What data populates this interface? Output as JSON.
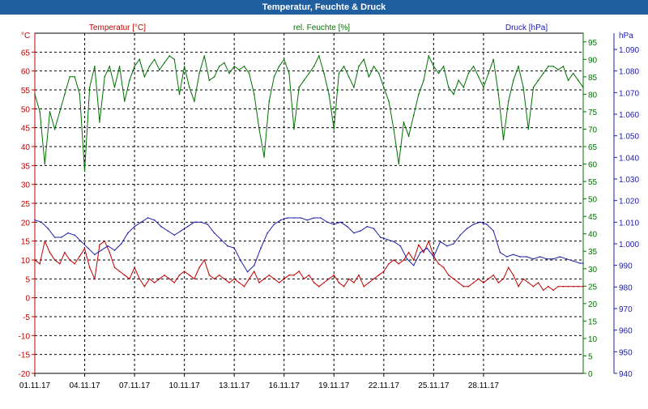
{
  "window": {
    "title": "Temperatur, Feuchte & Druck"
  },
  "colors": {
    "titlebar": "#1f5fa0",
    "temp": "#c00000",
    "hum": "#007000",
    "press": "#1c1caa",
    "grid": "#000000"
  },
  "chart_data": {
    "type": "line",
    "title": "Temperatur, Feuchte & Druck",
    "grid": true,
    "x_ticks": [
      "01.11.17",
      "04.11.17",
      "07.11.17",
      "10.11.17",
      "13.11.17",
      "16.11.17",
      "19.11.17",
      "22.11.17",
      "25.11.17",
      "28.11.17"
    ],
    "x_tick_days": [
      0,
      3,
      6,
      9,
      12,
      15,
      18,
      21,
      24,
      27
    ],
    "xlim_days": [
      0,
      33
    ],
    "axes": [
      {
        "id": "temp",
        "side": "left",
        "unit": "°C",
        "ylim": [
          -20,
          70
        ],
        "ticks": [
          -20,
          -15,
          -10,
          -5,
          0,
          5,
          10,
          15,
          20,
          25,
          30,
          35,
          40,
          45,
          50,
          55,
          60,
          65
        ],
        "color": "#c00000"
      },
      {
        "id": "hum",
        "side": "right",
        "unit": "%",
        "ylim": [
          0,
          97.5
        ],
        "ticks": [
          0,
          5,
          10,
          15,
          20,
          25,
          30,
          35,
          40,
          45,
          50,
          55,
          60,
          65,
          70,
          75,
          80,
          85,
          90,
          95
        ],
        "color": "#007000"
      },
      {
        "id": "press",
        "side": "right",
        "unit": "hPa",
        "ylim": [
          940,
          1097.5
        ],
        "ticks": [
          940,
          950,
          960,
          970,
          980,
          990,
          1000,
          1010,
          1020,
          1030,
          1040,
          1050,
          1060,
          1070,
          1080,
          1090
        ],
        "tick_labels": [
          "940",
          "950",
          "960",
          "970",
          "980",
          "990",
          "1.000",
          "1.010",
          "1.020",
          "1.030",
          "1.040",
          "1.050",
          "1.060",
          "1.070",
          "1.080",
          "1.090"
        ],
        "color": "#1c1caa"
      }
    ],
    "series": [
      {
        "name": "Temperatur [°C]",
        "axis": "temp",
        "color": "#c00000",
        "x": [
          0,
          0.3,
          0.6,
          0.9,
          1.2,
          1.5,
          1.8,
          2.1,
          2.4,
          2.7,
          3.0,
          3.3,
          3.6,
          3.9,
          4.2,
          4.5,
          4.8,
          5.1,
          5.4,
          5.7,
          6.0,
          6.3,
          6.6,
          6.9,
          7.2,
          7.5,
          7.8,
          8.1,
          8.4,
          8.7,
          9.0,
          9.3,
          9.6,
          9.9,
          10.2,
          10.5,
          10.8,
          11.1,
          11.4,
          11.7,
          12.0,
          12.3,
          12.6,
          12.9,
          13.2,
          13.5,
          13.8,
          14.1,
          14.4,
          14.7,
          15.0,
          15.3,
          15.6,
          15.9,
          16.2,
          16.5,
          16.8,
          17.1,
          17.4,
          17.7,
          18.0,
          18.3,
          18.6,
          18.9,
          19.2,
          19.5,
          19.8,
          20.1,
          20.4,
          20.7,
          21.0,
          21.3,
          21.6,
          21.9,
          22.2,
          22.5,
          22.8,
          23.1,
          23.4,
          23.7,
          24.0,
          24.3,
          24.6,
          24.9,
          25.2,
          25.5,
          25.8,
          26.1,
          26.4,
          26.7,
          27.0,
          27.3,
          27.6,
          27.9,
          28.2,
          28.5,
          28.8,
          29.1,
          29.4,
          29.7,
          30.0,
          30.3,
          30.6,
          30.9,
          31.2,
          31.5,
          31.8,
          32.1,
          32.4,
          32.7,
          33.0
        ],
        "y": [
          10,
          9,
          15,
          12,
          10,
          9,
          12,
          10,
          9,
          11,
          13,
          8,
          5,
          14,
          15,
          12,
          8,
          7,
          6,
          5,
          8,
          5,
          3,
          5,
          4,
          5,
          6,
          5,
          4,
          6,
          7,
          6,
          5,
          8,
          10,
          6,
          5,
          6,
          5,
          4,
          5,
          4,
          3,
          5,
          7,
          4,
          5,
          6,
          5,
          4,
          5,
          6,
          6,
          7,
          5,
          6,
          4,
          3,
          4,
          5,
          6,
          4,
          3,
          5,
          4,
          6,
          3,
          4,
          5,
          6,
          7,
          9,
          10,
          9,
          10,
          12,
          10,
          14,
          12,
          15,
          11,
          9,
          8,
          6,
          5,
          4,
          3,
          3,
          4,
          5,
          4,
          5,
          6,
          4,
          5,
          8,
          6,
          3,
          5,
          4,
          3,
          4,
          2,
          3,
          2,
          3,
          3,
          3,
          3,
          3,
          3
        ]
      },
      {
        "name": "rel. Feuchte [%]",
        "axis": "hum",
        "color": "#007000",
        "x": [
          0,
          0.3,
          0.6,
          0.9,
          1.2,
          1.5,
          1.8,
          2.1,
          2.4,
          2.7,
          3.0,
          3.3,
          3.6,
          3.9,
          4.2,
          4.5,
          4.8,
          5.1,
          5.4,
          5.7,
          6.0,
          6.3,
          6.6,
          6.9,
          7.2,
          7.5,
          7.8,
          8.1,
          8.4,
          8.7,
          9.0,
          9.3,
          9.6,
          9.9,
          10.2,
          10.5,
          10.8,
          11.1,
          11.4,
          11.7,
          12.0,
          12.3,
          12.6,
          12.9,
          13.2,
          13.5,
          13.8,
          14.1,
          14.4,
          14.7,
          15.0,
          15.3,
          15.6,
          15.9,
          16.2,
          16.5,
          16.8,
          17.1,
          17.4,
          17.7,
          18.0,
          18.3,
          18.6,
          18.9,
          19.2,
          19.5,
          19.8,
          20.1,
          20.4,
          20.7,
          21.0,
          21.3,
          21.6,
          21.9,
          22.2,
          22.5,
          22.8,
          23.1,
          23.4,
          23.7,
          24.0,
          24.3,
          24.6,
          24.9,
          25.2,
          25.5,
          25.8,
          26.1,
          26.4,
          26.7,
          27.0,
          27.3,
          27.6,
          27.9,
          28.2,
          28.5,
          28.8,
          29.1,
          29.4,
          29.7,
          30.0,
          30.3,
          30.6,
          30.9,
          31.2,
          31.5,
          31.8,
          32.1,
          32.4,
          32.7,
          33.0
        ],
        "y": [
          80,
          75,
          60,
          75,
          70,
          75,
          80,
          85,
          85,
          80,
          58,
          82,
          88,
          72,
          85,
          88,
          82,
          88,
          78,
          84,
          88,
          90,
          85,
          88,
          90,
          87,
          89,
          91,
          90,
          80,
          88,
          82,
          78,
          86,
          91,
          84,
          85,
          88,
          89,
          86,
          88,
          87,
          88,
          86,
          80,
          70,
          62,
          78,
          85,
          88,
          90,
          86,
          70,
          82,
          84,
          86,
          88,
          91,
          86,
          80,
          70,
          86,
          88,
          85,
          82,
          88,
          90,
          85,
          88,
          86,
          82,
          78,
          70,
          60,
          72,
          68,
          74,
          80,
          84,
          91,
          88,
          86,
          88,
          82,
          80,
          84,
          82,
          86,
          88,
          85,
          82,
          86,
          90,
          80,
          67,
          78,
          84,
          88,
          82,
          70,
          82,
          84,
          86,
          88,
          88,
          87,
          88,
          84,
          86,
          84,
          82
        ]
      },
      {
        "name": "Druck [hPa]",
        "axis": "press",
        "color": "#1c1caa",
        "x": [
          0,
          0.4,
          0.8,
          1.2,
          1.6,
          2.0,
          2.4,
          2.8,
          3.2,
          3.6,
          4.0,
          4.4,
          4.8,
          5.2,
          5.6,
          6.0,
          6.4,
          6.8,
          7.2,
          7.6,
          8.0,
          8.4,
          8.8,
          9.2,
          9.6,
          10.0,
          10.4,
          10.8,
          11.2,
          11.6,
          12.0,
          12.4,
          12.8,
          13.2,
          13.6,
          14.0,
          14.4,
          14.8,
          15.2,
          15.6,
          16.0,
          16.4,
          16.8,
          17.2,
          17.6,
          18.0,
          18.4,
          18.8,
          19.2,
          19.6,
          20.0,
          20.4,
          20.8,
          21.2,
          21.6,
          22.0,
          22.4,
          22.8,
          23.2,
          23.6,
          24.0,
          24.4,
          24.8,
          25.2,
          25.6,
          26.0,
          26.4,
          26.8,
          27.2,
          27.6,
          28.0,
          28.4,
          28.8,
          29.2,
          29.6,
          30.0,
          30.4,
          30.8,
          31.2,
          31.6,
          32.0,
          32.4,
          32.8,
          33.0
        ],
        "y": [
          1011,
          1010,
          1007,
          1003,
          1003,
          1005,
          1004,
          1001,
          998,
          995,
          997,
          999,
          997,
          1000,
          1005,
          1008,
          1010,
          1012,
          1011,
          1008,
          1006,
          1004,
          1006,
          1008,
          1010,
          1010,
          1009,
          1005,
          1002,
          999,
          998,
          992,
          987,
          990,
          998,
          1005,
          1009,
          1011,
          1012,
          1012,
          1012,
          1011,
          1012,
          1012,
          1010,
          1009,
          1010,
          1008,
          1005,
          1006,
          1008,
          1007,
          1003,
          1002,
          1001,
          999,
          993,
          990,
          996,
          998,
          994,
          1001,
          999,
          1000,
          1004,
          1007,
          1009,
          1010,
          1009,
          1006,
          996,
          994,
          995,
          994,
          994,
          993,
          994,
          993,
          993,
          994,
          993,
          992,
          991,
          991
        ]
      }
    ]
  }
}
